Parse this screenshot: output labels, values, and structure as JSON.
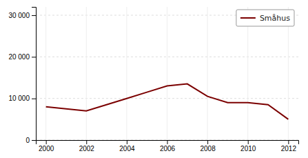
{
  "chart_data": {
    "type": "line",
    "x": [
      2000,
      2001,
      2002,
      2003,
      2004,
      2005,
      2006,
      2007,
      2008,
      2009,
      2010,
      2011,
      2012
    ],
    "series": [
      {
        "name": "Småhus",
        "color": "#7B0000",
        "values": [
          8000,
          7500,
          7000,
          8500,
          10000,
          11500,
          13000,
          13500,
          10500,
          9000,
          9000,
          8500,
          5000
        ]
      }
    ],
    "xlim": [
      1999.5,
      2012.5
    ],
    "xticks": [
      2000,
      2002,
      2004,
      2006,
      2008,
      2010,
      2012
    ],
    "ylim": [
      0,
      32000
    ],
    "yticks": [
      0,
      {
        "value": 10000,
        "label": "10 000"
      },
      {
        "value": 20000,
        "label": "20 000"
      },
      {
        "value": 30000,
        "label": "30 000"
      }
    ],
    "grid": true,
    "legend": "upper right"
  }
}
